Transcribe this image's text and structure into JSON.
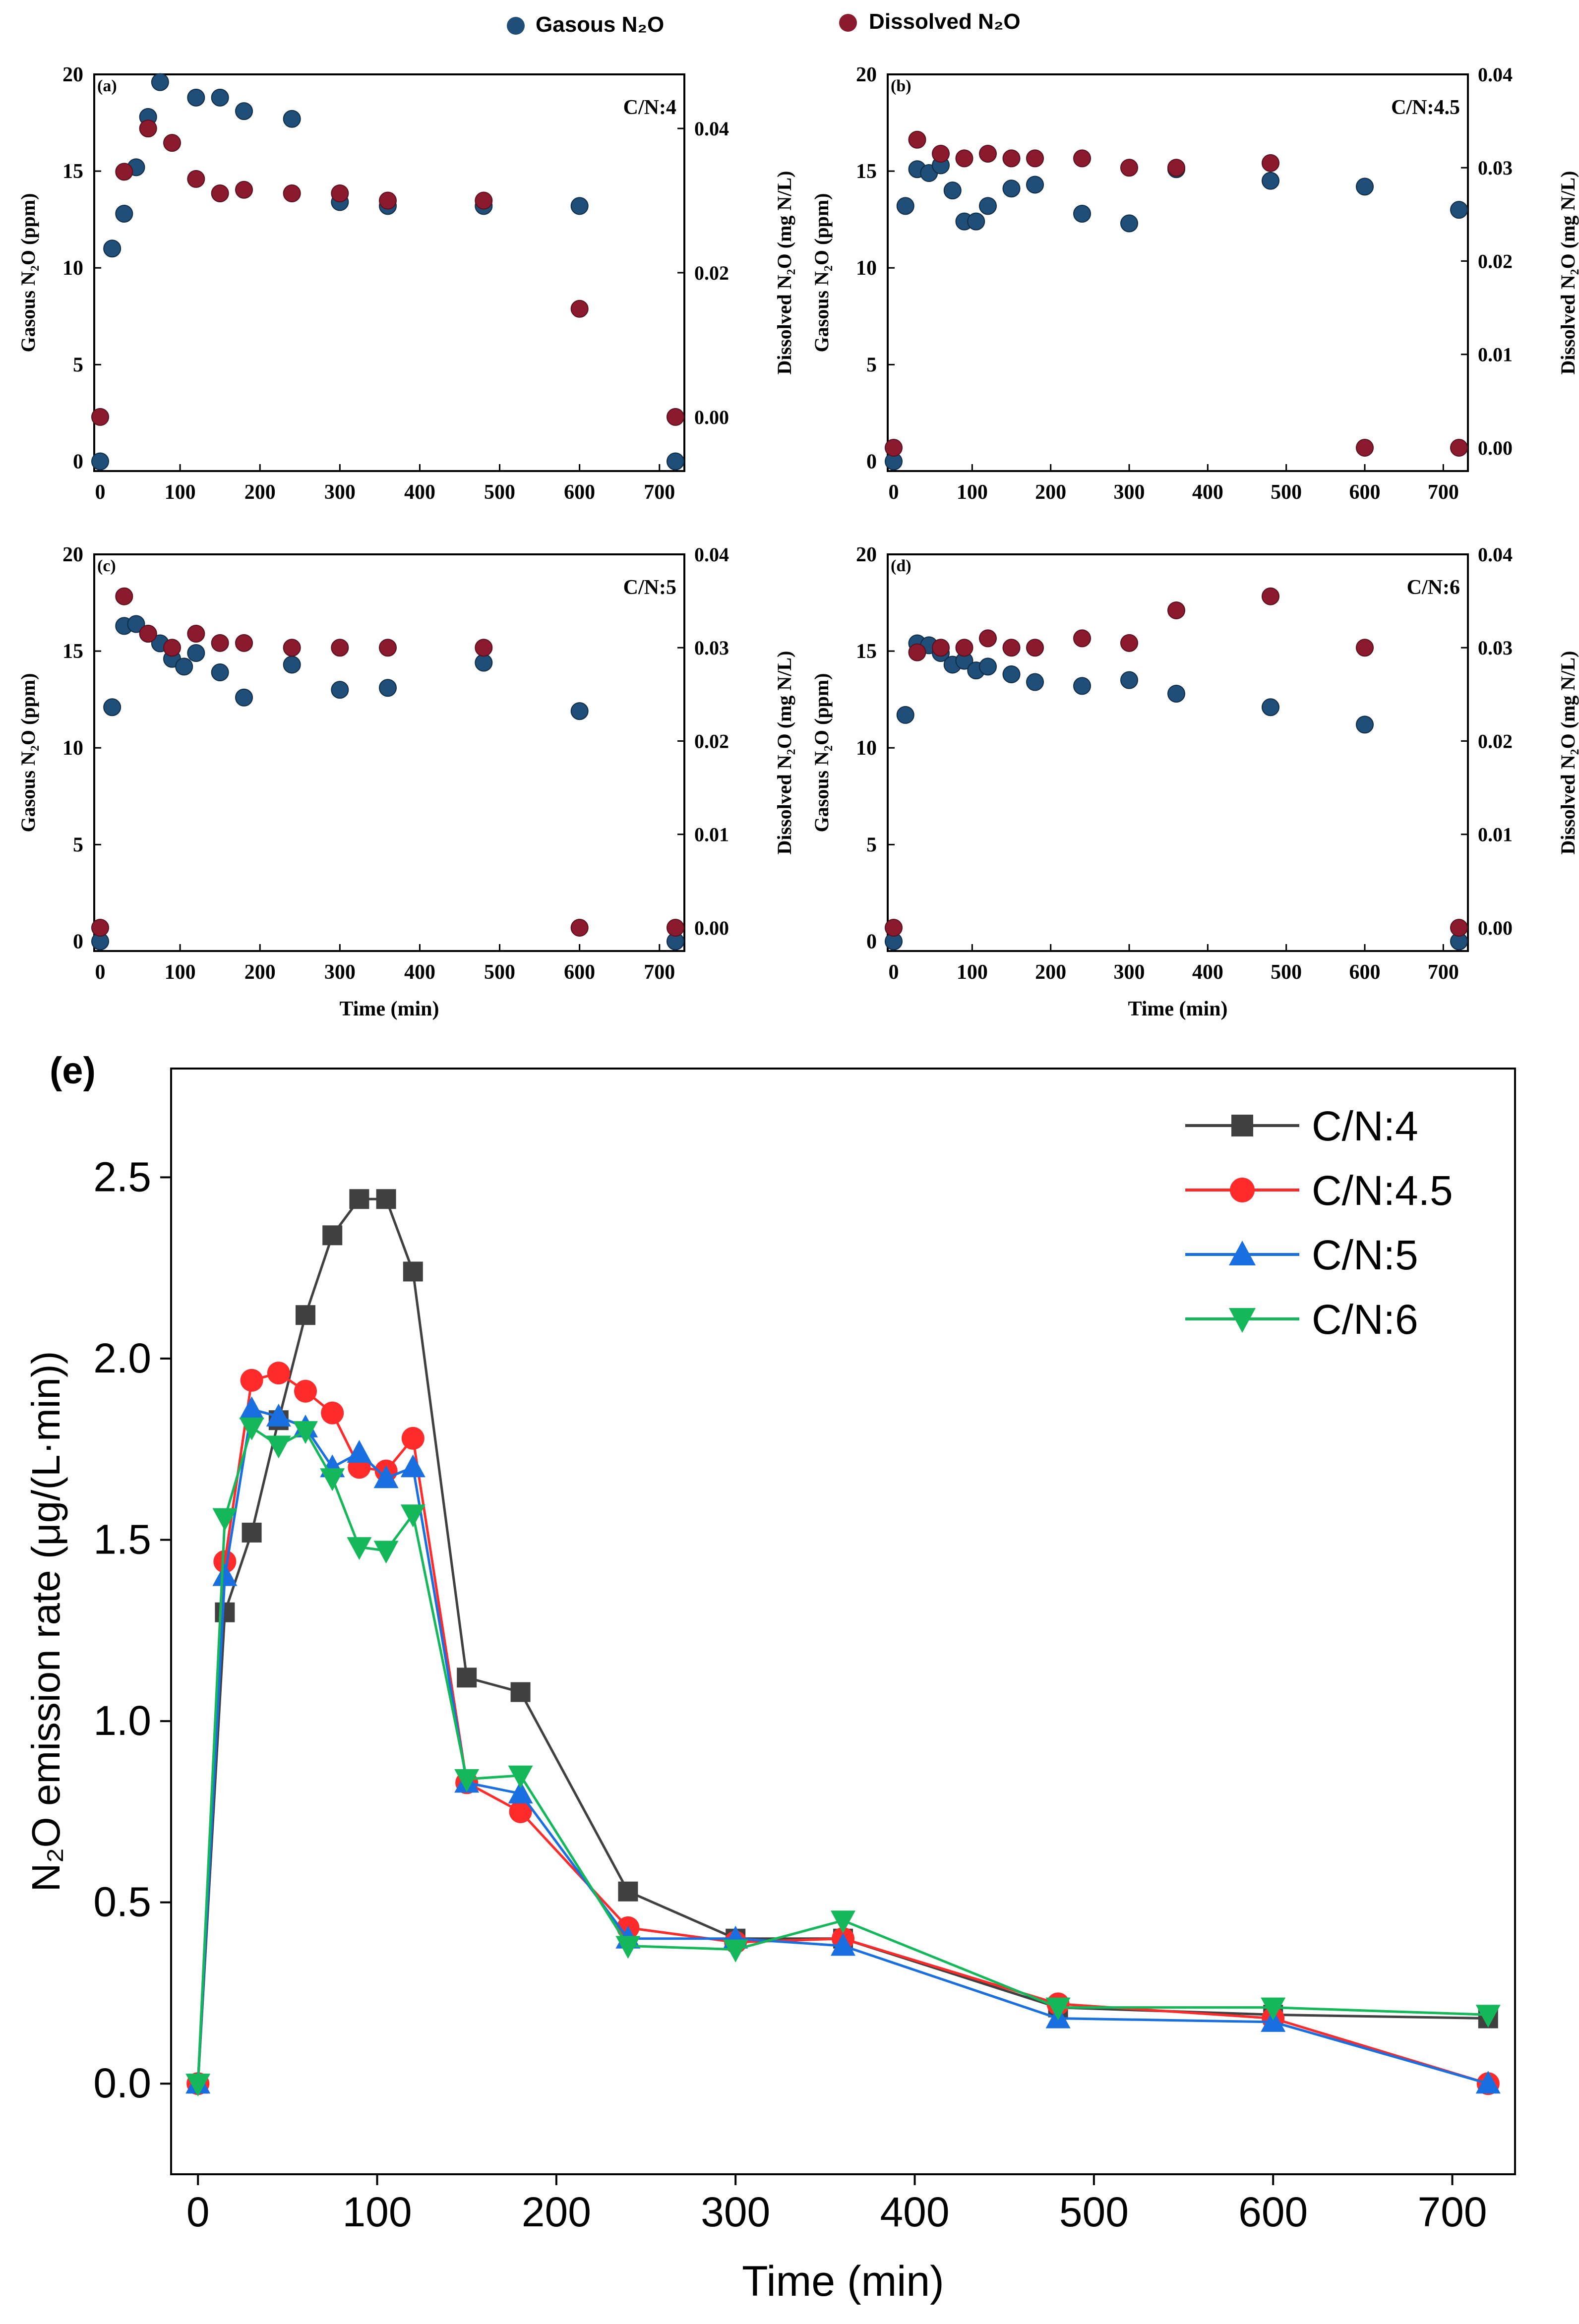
{
  "legend_top": {
    "gaseous": "Gasous N₂O",
    "dissolved": "Dissolved N₂O",
    "gaseous_color": "#1f4e79",
    "dissolved_color": "#8b1a2e"
  },
  "labels": {
    "time_axis": "Time (min)",
    "gaseous_axis": "Gasous N₂O (ppm)",
    "dissolved_axis": "Dissolved N₂O (mg N/L)"
  },
  "chart_data": [
    {
      "id": "a",
      "panel_label": "(a)",
      "title": "C/N:4",
      "type": "scatter",
      "xlim": [
        0,
        720
      ],
      "xticks": [
        0,
        100,
        200,
        300,
        400,
        500,
        600,
        700
      ],
      "ylim_left": [
        -0.5,
        20
      ],
      "yticks_left": [
        0,
        5,
        10,
        15,
        20
      ],
      "ylim_right": [
        -0.0075,
        0.0475
      ],
      "yticks_right": [
        0.0,
        0.02,
        0.04
      ],
      "gaseous": {
        "x": [
          0,
          15,
          30,
          45,
          60,
          75,
          120,
          150,
          180,
          240,
          300,
          360,
          480,
          600,
          720
        ],
        "y": [
          0,
          11,
          12.8,
          15.2,
          17.8,
          19.6,
          18.8,
          18.8,
          18.1,
          17.7,
          13.4,
          13.2,
          13.2,
          13.2,
          0
        ]
      },
      "dissolved": {
        "x": [
          0,
          30,
          60,
          90,
          120,
          150,
          180,
          240,
          300,
          360,
          480,
          600,
          720
        ],
        "y": [
          0,
          0.034,
          0.04,
          0.038,
          0.033,
          0.031,
          0.0315,
          0.031,
          0.031,
          0.03,
          0.03,
          0.015,
          0
        ]
      }
    },
    {
      "id": "b",
      "panel_label": "(b)",
      "title": "C/N:4.5",
      "type": "scatter",
      "xlim": [
        0,
        720
      ],
      "xticks": [
        0,
        100,
        200,
        300,
        400,
        500,
        600,
        700
      ],
      "ylim_left": [
        -0.5,
        20
      ],
      "yticks_left": [
        0,
        5,
        10,
        15,
        20
      ],
      "ylim_right": [
        -0.0025,
        0.04
      ],
      "yticks_right": [
        0.0,
        0.01,
        0.02,
        0.03,
        0.04
      ],
      "gaseous": {
        "x": [
          0,
          15,
          30,
          45,
          60,
          75,
          90,
          105,
          120,
          150,
          180,
          240,
          300,
          360,
          480,
          600,
          720
        ],
        "y": [
          0,
          13.2,
          15.1,
          14.9,
          15.3,
          14,
          12.4,
          12.4,
          13.2,
          14.1,
          14.3,
          12.8,
          12.3,
          15.1,
          14.5,
          14.2,
          13
        ]
      },
      "dissolved": {
        "x": [
          0,
          30,
          60,
          90,
          120,
          150,
          180,
          240,
          300,
          360,
          480,
          600,
          720
        ],
        "y": [
          0,
          0.033,
          0.0315,
          0.031,
          0.0315,
          0.031,
          0.031,
          0.031,
          0.03,
          0.03,
          0.0305,
          0,
          0
        ]
      }
    },
    {
      "id": "c",
      "panel_label": "(c)",
      "title": "C/N:5",
      "type": "scatter",
      "xlim": [
        0,
        720
      ],
      "xticks": [
        0,
        100,
        200,
        300,
        400,
        500,
        600,
        700
      ],
      "ylim_left": [
        -0.5,
        20
      ],
      "yticks_left": [
        0,
        5,
        10,
        15,
        20
      ],
      "ylim_right": [
        -0.0025,
        0.04
      ],
      "yticks_right": [
        0.0,
        0.01,
        0.02,
        0.03,
        0.04
      ],
      "gaseous": {
        "x": [
          0,
          15,
          30,
          45,
          60,
          75,
          90,
          105,
          120,
          150,
          180,
          240,
          300,
          360,
          480,
          600,
          720
        ],
        "y": [
          0,
          12.1,
          16.3,
          16.4,
          15.9,
          15.4,
          14.6,
          14.2,
          14.9,
          13.9,
          12.6,
          14.3,
          13.0,
          13.1,
          14.4,
          11.9,
          0
        ]
      },
      "dissolved": {
        "x": [
          0,
          30,
          60,
          90,
          120,
          150,
          180,
          240,
          300,
          360,
          480,
          600,
          720
        ],
        "y": [
          0,
          0.0355,
          0.0315,
          0.03,
          0.0315,
          0.0305,
          0.0305,
          0.03,
          0.03,
          0.03,
          0.03,
          0,
          0
        ]
      }
    },
    {
      "id": "d",
      "panel_label": "(d)",
      "title": "C/N:6",
      "type": "scatter",
      "xlim": [
        0,
        720
      ],
      "xticks": [
        0,
        100,
        200,
        300,
        400,
        500,
        600,
        700
      ],
      "ylim_left": [
        -0.5,
        20
      ],
      "yticks_left": [
        0,
        5,
        10,
        15,
        20
      ],
      "ylim_right": [
        -0.0025,
        0.04
      ],
      "yticks_right": [
        0.0,
        0.01,
        0.02,
        0.03,
        0.04
      ],
      "gaseous": {
        "x": [
          0,
          15,
          30,
          45,
          60,
          75,
          90,
          105,
          120,
          150,
          180,
          240,
          300,
          360,
          480,
          600,
          720
        ],
        "y": [
          0,
          11.7,
          15.4,
          15.3,
          14.9,
          14.3,
          14.5,
          14.0,
          14.2,
          13.8,
          13.4,
          13.2,
          13.5,
          12.8,
          12.1,
          11.2,
          0
        ]
      },
      "dissolved": {
        "x": [
          0,
          30,
          60,
          90,
          120,
          150,
          180,
          240,
          300,
          360,
          480,
          600,
          720
        ],
        "y": [
          0,
          0.0295,
          0.03,
          0.03,
          0.031,
          0.03,
          0.03,
          0.031,
          0.0305,
          0.034,
          0.0355,
          0.03,
          0
        ]
      }
    },
    {
      "id": "e",
      "panel_label": "(e)",
      "type": "line",
      "xlabel": "Time (min)",
      "ylabel": "N₂O emission rate (μg/(L·min))",
      "xlim": [
        -15,
        735
      ],
      "xticks": [
        0,
        100,
        200,
        300,
        400,
        500,
        600,
        700
      ],
      "ylim": [
        -0.25,
        2.8
      ],
      "yticks": [
        0.0,
        0.5,
        1.0,
        1.5,
        2.0,
        2.5
      ],
      "legend_position": "top-right",
      "series": [
        {
          "name": "C/N:4",
          "color": "#404040",
          "marker": "square",
          "x": [
            0,
            15,
            30,
            45,
            60,
            75,
            90,
            105,
            120,
            150,
            180,
            240,
            300,
            360,
            480,
            600,
            720
          ],
          "y": [
            0,
            1.3,
            1.52,
            1.83,
            2.12,
            2.34,
            2.44,
            2.44,
            2.24,
            1.12,
            1.08,
            0.53,
            0.4,
            0.4,
            0.21,
            0.19,
            0.18
          ]
        },
        {
          "name": "C/N:4.5",
          "color": "#ff2a2a",
          "marker": "circle",
          "x": [
            0,
            15,
            30,
            45,
            60,
            75,
            90,
            105,
            120,
            150,
            180,
            240,
            300,
            360,
            480,
            600,
            720
          ],
          "y": [
            0,
            1.44,
            1.94,
            1.96,
            1.91,
            1.85,
            1.7,
            1.69,
            1.78,
            0.83,
            0.75,
            0.43,
            0.39,
            0.4,
            0.22,
            0.18,
            0
          ]
        },
        {
          "name": "C/N:5",
          "color": "#1a6fe0",
          "marker": "triangle-up",
          "x": [
            0,
            15,
            30,
            45,
            60,
            75,
            90,
            105,
            120,
            150,
            180,
            240,
            300,
            360,
            480,
            600,
            720
          ],
          "y": [
            0,
            1.4,
            1.86,
            1.84,
            1.81,
            1.7,
            1.74,
            1.67,
            1.7,
            0.83,
            0.8,
            0.4,
            0.4,
            0.38,
            0.18,
            0.17,
            0
          ]
        },
        {
          "name": "C/N:6",
          "color": "#14b85a",
          "marker": "triangle-down",
          "x": [
            0,
            15,
            30,
            45,
            60,
            75,
            90,
            105,
            120,
            150,
            180,
            240,
            300,
            360,
            480,
            600,
            720
          ],
          "y": [
            0,
            1.56,
            1.81,
            1.76,
            1.8,
            1.67,
            1.48,
            1.47,
            1.57,
            0.84,
            0.85,
            0.38,
            0.37,
            0.45,
            0.21,
            0.21,
            0.19
          ]
        }
      ]
    }
  ]
}
